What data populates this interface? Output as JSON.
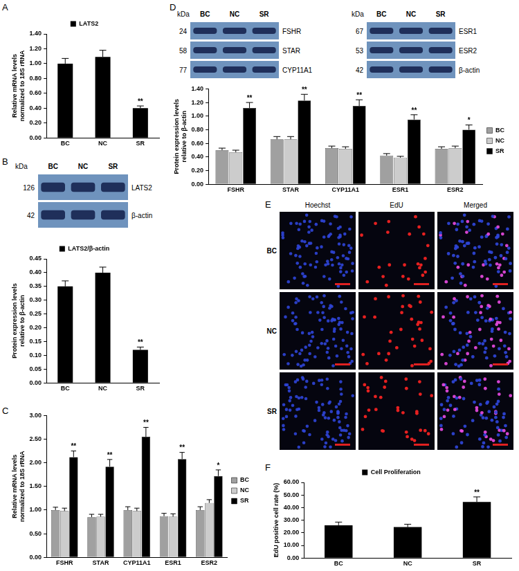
{
  "chart_data": [
    {
      "panel": "A",
      "type": "bar",
      "categories": [
        "BC",
        "NC",
        "SR"
      ],
      "ylabel": [
        "Relative mRNA levels",
        "normalized to 18S rRNA"
      ],
      "ylim": [
        0,
        1.4
      ],
      "yticks": [
        {
          "value": 0,
          "label": "0.00"
        },
        {
          "value": 0.2,
          "label": "0.20"
        },
        {
          "value": 0.4,
          "label": "0.40"
        },
        {
          "value": 0.6,
          "label": "0.60"
        },
        {
          "value": 0.8,
          "label": "0.80"
        },
        {
          "value": 1.0,
          "label": "1.00"
        },
        {
          "value": 1.2,
          "label": "1.20"
        },
        {
          "value": 1.4,
          "label": "1.40"
        }
      ],
      "grid": false,
      "legend": "top",
      "series": [
        {
          "name": "LATS2",
          "color": "#000000",
          "values": [
            1.0,
            1.09,
            0.4
          ],
          "errors": [
            0.07,
            0.09,
            0.03
          ],
          "annotations": [
            null,
            null,
            "**"
          ]
        }
      ]
    },
    {
      "panel": "B",
      "type": "bar",
      "categories": [
        "BC",
        "NC",
        "SR"
      ],
      "ylabel": [
        "Protein expression levels",
        "relative to β-actin"
      ],
      "ylim": [
        0,
        0.45
      ],
      "yticks": [
        {
          "value": 0,
          "label": "0.00"
        },
        {
          "value": 0.05,
          "label": "0.05"
        },
        {
          "value": 0.1,
          "label": "0.10"
        },
        {
          "value": 0.15,
          "label": "0.15"
        },
        {
          "value": 0.2,
          "label": "0.20"
        },
        {
          "value": 0.25,
          "label": "0.25"
        },
        {
          "value": 0.3,
          "label": "0.30"
        },
        {
          "value": 0.35,
          "label": "0.35"
        },
        {
          "value": 0.4,
          "label": "0.40"
        },
        {
          "value": 0.45,
          "label": "0.45"
        }
      ],
      "grid": false,
      "legend": "top",
      "series": [
        {
          "name": "LATS2/β-actin",
          "color": "#000000",
          "values": [
            0.35,
            0.4,
            0.12
          ],
          "errors": [
            0.02,
            0.02,
            0.01
          ],
          "annotations": [
            null,
            null,
            "**"
          ]
        }
      ]
    },
    {
      "panel": "C",
      "type": "bar",
      "categories": [
        "FSHR",
        "STAR",
        "CYP11A1",
        "ESR1",
        "ESR2"
      ],
      "ylabel": [
        "Relative mRNA levels",
        "normalized to 18S rRNA"
      ],
      "ylim": [
        0,
        3.0
      ],
      "yticks": [
        {
          "value": 0,
          "label": "0.00"
        },
        {
          "value": 0.5,
          "label": "0.50"
        },
        {
          "value": 1.0,
          "label": "1.00"
        },
        {
          "value": 1.5,
          "label": "1.50"
        },
        {
          "value": 2.0,
          "label": "2.00"
        },
        {
          "value": 2.5,
          "label": "2.50"
        },
        {
          "value": 3.0,
          "label": "3.00"
        }
      ],
      "grid": false,
      "legend": "right",
      "series": [
        {
          "name": "BC",
          "color": "#a0a0a0",
          "values": [
            1.0,
            0.85,
            1.0,
            0.87,
            1.0
          ],
          "errors": [
            0.06,
            0.06,
            0.07,
            0.06,
            0.07
          ]
        },
        {
          "name": "NC",
          "color": "#cccccc",
          "values": [
            0.98,
            0.86,
            0.98,
            0.86,
            1.15
          ],
          "errors": [
            0.06,
            0.05,
            0.06,
            0.06,
            0.07
          ]
        },
        {
          "name": "SR",
          "color": "#000000",
          "values": [
            2.12,
            1.92,
            2.55,
            2.08,
            1.72
          ],
          "errors": [
            0.13,
            0.15,
            0.2,
            0.14,
            0.13
          ],
          "annotations": [
            "**",
            "**",
            "**",
            "**",
            "*"
          ]
        }
      ]
    },
    {
      "panel": "D",
      "type": "bar",
      "categories": [
        "FSHR",
        "STAR",
        "CYP11A1",
        "ESR1",
        "ESR2"
      ],
      "ylabel": [
        "Protein expression levels",
        "relative to β-actin"
      ],
      "ylim": [
        0,
        1.4
      ],
      "yticks": [
        {
          "value": 0,
          "label": "0.00"
        },
        {
          "value": 0.2,
          "label": "0.20"
        },
        {
          "value": 0.4,
          "label": "0.40"
        },
        {
          "value": 0.6,
          "label": "0.60"
        },
        {
          "value": 0.8,
          "label": "0.80"
        },
        {
          "value": 1.0,
          "label": "1.00"
        },
        {
          "value": 1.2,
          "label": "1.20"
        },
        {
          "value": 1.4,
          "label": "1.40"
        }
      ],
      "grid": false,
      "legend": "right",
      "series": [
        {
          "name": "BC",
          "color": "#a0a0a0",
          "values": [
            0.5,
            0.66,
            0.53,
            0.42,
            0.52
          ],
          "errors": [
            0.03,
            0.04,
            0.03,
            0.03,
            0.03
          ]
        },
        {
          "name": "NC",
          "color": "#cccccc",
          "values": [
            0.47,
            0.66,
            0.52,
            0.39,
            0.53
          ],
          "errors": [
            0.03,
            0.04,
            0.03,
            0.02,
            0.03
          ]
        },
        {
          "name": "SR",
          "color": "#000000",
          "values": [
            1.12,
            1.23,
            1.15,
            0.95,
            0.8
          ],
          "errors": [
            0.08,
            0.09,
            0.09,
            0.07,
            0.07
          ],
          "annotations": [
            "**",
            "**",
            "**",
            "**",
            "*"
          ]
        }
      ]
    },
    {
      "panel": "F",
      "type": "bar",
      "categories": [
        "BC",
        "NC",
        "SR"
      ],
      "ylabel": "EdU positive cell rate (%)",
      "ylim": [
        0,
        60
      ],
      "yticks": [
        {
          "value": 0,
          "label": "0.00"
        },
        {
          "value": 10,
          "label": "10.00"
        },
        {
          "value": 20,
          "label": "20.00"
        },
        {
          "value": 30,
          "label": "30.00"
        },
        {
          "value": 40,
          "label": "40.00"
        },
        {
          "value": 50,
          "label": "50.00"
        },
        {
          "value": 60,
          "label": "60.00"
        }
      ],
      "grid": false,
      "legend": "top",
      "series": [
        {
          "name": "Cell Proliferation",
          "color": "#000000",
          "values": [
            26.0,
            24.5,
            44.5
          ],
          "errors": [
            2.5,
            2.3,
            4.0
          ],
          "annotations": [
            null,
            null,
            "**"
          ]
        }
      ]
    }
  ],
  "blots": [
    {
      "panel": "B",
      "groups": [
        {
          "unit": "kDa",
          "lanes": [
            "BC",
            "NC",
            "SR"
          ],
          "bands": [
            {
              "label": "LATS2",
              "kda": 126
            },
            {
              "label": "β-actin",
              "kda": 42
            }
          ]
        }
      ]
    },
    {
      "panel": "D",
      "groups": [
        {
          "unit": "kDa",
          "lanes": [
            "BC",
            "NC",
            "SR"
          ],
          "bands": [
            {
              "label": "FSHR",
              "kda": 24
            },
            {
              "label": "STAR",
              "kda": 58
            },
            {
              "label": "CYP11A1",
              "kda": 77
            }
          ]
        },
        {
          "unit": "kDa",
          "lanes": [
            "BC",
            "NC",
            "SR"
          ],
          "bands": [
            {
              "label": "ESR1",
              "kda": 67
            },
            {
              "label": "ESR2",
              "kda": 53
            },
            {
              "label": "β-actin",
              "kda": 42
            }
          ]
        }
      ]
    }
  ],
  "images": {
    "panel": "E",
    "columns": [
      "Hoechst",
      "EdU",
      "Merged"
    ],
    "rows": [
      "BC",
      "NC",
      "SR"
    ]
  }
}
